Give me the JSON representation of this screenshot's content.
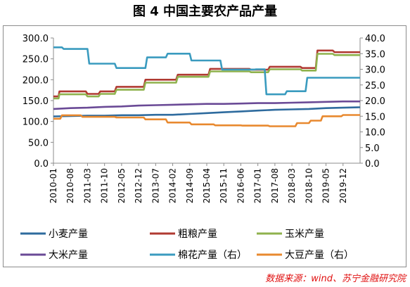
{
  "title": "图 4  中国主要农产品产量",
  "source": "数据来源：wind、苏宁金融研究院",
  "chart_data": {
    "type": "line",
    "x_tick_labels": [
      "2010-01",
      "2010-08",
      "2011-03",
      "2011-10",
      "2012-05",
      "2012-12",
      "2013-07",
      "2014-02",
      "2014-09",
      "2015-04",
      "2015-11",
      "2016-06",
      "2017-01",
      "2017-08",
      "2018-03",
      "2018-10",
      "2019-05",
      "2019-12"
    ],
    "ylim_left": [
      0,
      300
    ],
    "yticks_left": [
      "0.0",
      "50.0",
      "100.0",
      "150.0",
      "200.0",
      "250.0",
      "300.0"
    ],
    "ylim_right": [
      0,
      40
    ],
    "yticks_right": [
      "0.0",
      "5.0",
      "10.0",
      "15.0",
      "20.0",
      "25.0",
      "30.0",
      "35.0",
      "40.0"
    ],
    "series": [
      {
        "name": "小麦产量",
        "axis": "left",
        "color": "#2e6b9e",
        "points": [
          [
            0,
            112
          ],
          [
            1,
            113
          ],
          [
            2,
            114
          ],
          [
            3,
            114
          ],
          [
            4,
            115
          ],
          [
            5,
            115
          ],
          [
            6,
            116
          ],
          [
            7,
            116
          ],
          [
            8,
            118
          ],
          [
            9,
            120
          ],
          [
            10,
            122
          ],
          [
            11,
            124
          ],
          [
            12,
            126
          ],
          [
            13,
            128
          ],
          [
            14,
            129
          ],
          [
            15,
            130
          ],
          [
            16,
            132
          ],
          [
            17,
            133
          ],
          [
            18,
            134
          ]
        ]
      },
      {
        "name": "粗粮产量",
        "axis": "left",
        "color": "#b03a32",
        "points": [
          [
            0,
            160
          ],
          [
            0.3,
            160
          ],
          [
            0.35,
            172
          ],
          [
            1.9,
            172
          ],
          [
            2,
            166
          ],
          [
            2.65,
            166
          ],
          [
            2.75,
            172
          ],
          [
            3.6,
            172
          ],
          [
            3.7,
            183
          ],
          [
            5.3,
            183
          ],
          [
            5.4,
            200
          ],
          [
            7.2,
            200
          ],
          [
            7.3,
            212
          ],
          [
            9.1,
            212
          ],
          [
            9.2,
            226
          ],
          [
            11.5,
            226
          ],
          [
            11.6,
            224
          ],
          [
            12.6,
            224
          ],
          [
            12.7,
            231
          ],
          [
            14.5,
            231
          ],
          [
            14.6,
            228
          ],
          [
            15.4,
            228
          ],
          [
            15.5,
            270
          ],
          [
            16.4,
            270
          ],
          [
            16.5,
            266
          ],
          [
            18,
            266
          ]
        ]
      },
      {
        "name": "玉米产量",
        "axis": "left",
        "color": "#8fb24d",
        "points": [
          [
            0,
            155
          ],
          [
            0.3,
            155
          ],
          [
            0.35,
            165
          ],
          [
            1.9,
            165
          ],
          [
            2,
            160
          ],
          [
            2.65,
            160
          ],
          [
            2.75,
            166
          ],
          [
            3.6,
            166
          ],
          [
            3.7,
            176
          ],
          [
            5.3,
            176
          ],
          [
            5.4,
            193
          ],
          [
            7.2,
            193
          ],
          [
            7.3,
            207
          ],
          [
            9.1,
            207
          ],
          [
            9.2,
            220
          ],
          [
            11.5,
            220
          ],
          [
            11.6,
            218
          ],
          [
            12.6,
            218
          ],
          [
            12.7,
            225
          ],
          [
            14.5,
            225
          ],
          [
            14.6,
            222
          ],
          [
            15.4,
            222
          ],
          [
            15.5,
            262
          ],
          [
            16.4,
            262
          ],
          [
            16.5,
            259
          ],
          [
            18,
            259
          ]
        ]
      },
      {
        "name": "大米产量",
        "axis": "left",
        "color": "#6a4a96",
        "points": [
          [
            0,
            130
          ],
          [
            1,
            132
          ],
          [
            2,
            133
          ],
          [
            3,
            135
          ],
          [
            4,
            136
          ],
          [
            5,
            138
          ],
          [
            6,
            139
          ],
          [
            7,
            140
          ],
          [
            8,
            141
          ],
          [
            9,
            142
          ],
          [
            10,
            142
          ],
          [
            11,
            143
          ],
          [
            12,
            144
          ],
          [
            13,
            144
          ],
          [
            14,
            145
          ],
          [
            15,
            146
          ],
          [
            16,
            147
          ],
          [
            17,
            148
          ],
          [
            18,
            148
          ]
        ]
      },
      {
        "name": "棉花产量（右）",
        "axis": "right",
        "color": "#3a9bbf",
        "points": [
          [
            0,
            37.0
          ],
          [
            0.5,
            37.0
          ],
          [
            0.6,
            36.5
          ],
          [
            2.0,
            36.5
          ],
          [
            2.1,
            31.8
          ],
          [
            3.6,
            31.8
          ],
          [
            3.7,
            30.4
          ],
          [
            5.4,
            30.4
          ],
          [
            5.5,
            33.8
          ],
          [
            6.6,
            33.8
          ],
          [
            6.7,
            35.0
          ],
          [
            8.0,
            35.0
          ],
          [
            8.1,
            32.8
          ],
          [
            9.8,
            32.8
          ],
          [
            9.9,
            29.9
          ],
          [
            11.8,
            29.9
          ],
          [
            11.9,
            30.0
          ],
          [
            12.4,
            30.0
          ],
          [
            12.5,
            22.0
          ],
          [
            13.6,
            22.0
          ],
          [
            13.7,
            23.0
          ],
          [
            14.8,
            23.0
          ],
          [
            14.9,
            27.3
          ],
          [
            18,
            27.3
          ]
        ]
      },
      {
        "name": "大豆产量（右）",
        "axis": "right",
        "color": "#e8892f",
        "points": [
          [
            0,
            14.2
          ],
          [
            0.4,
            14.2
          ],
          [
            0.5,
            15.3
          ],
          [
            1.6,
            15.3
          ],
          [
            1.7,
            14.8
          ],
          [
            3.6,
            14.8
          ],
          [
            3.7,
            14.6
          ],
          [
            5.3,
            14.6
          ],
          [
            5.4,
            14.0
          ],
          [
            6.6,
            14.0
          ],
          [
            6.7,
            13.0
          ],
          [
            8.0,
            13.0
          ],
          [
            8.1,
            12.4
          ],
          [
            9.4,
            12.4
          ],
          [
            9.5,
            12.1
          ],
          [
            11.0,
            12.1
          ],
          [
            11.1,
            12.0
          ],
          [
            12.6,
            12.0
          ],
          [
            12.7,
            11.8
          ],
          [
            14.2,
            11.8
          ],
          [
            14.3,
            12.8
          ],
          [
            15.0,
            12.8
          ],
          [
            15.1,
            13.6
          ],
          [
            15.7,
            13.6
          ],
          [
            15.8,
            15.0
          ],
          [
            16.9,
            15.0
          ],
          [
            17.0,
            15.4
          ],
          [
            18,
            15.4
          ]
        ]
      }
    ]
  }
}
